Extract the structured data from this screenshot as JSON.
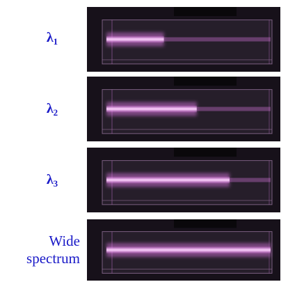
{
  "panels": [
    {
      "label_main": "λ",
      "label_sub": "1",
      "beam_fraction": 0.35
    },
    {
      "label_main": "λ",
      "label_sub": "2",
      "beam_fraction": 0.55
    },
    {
      "label_main": "λ",
      "label_sub": "3",
      "beam_fraction": 0.75
    },
    {
      "label_line1": "Wide",
      "label_line2": "spectrum",
      "beam_fraction": 1.0
    }
  ],
  "colors": {
    "label": "#1a1ac8",
    "beam": "#e27ae8",
    "beam_core": "#f7c8f8",
    "background": "#17111a",
    "plastic": "#3a2e3d"
  }
}
